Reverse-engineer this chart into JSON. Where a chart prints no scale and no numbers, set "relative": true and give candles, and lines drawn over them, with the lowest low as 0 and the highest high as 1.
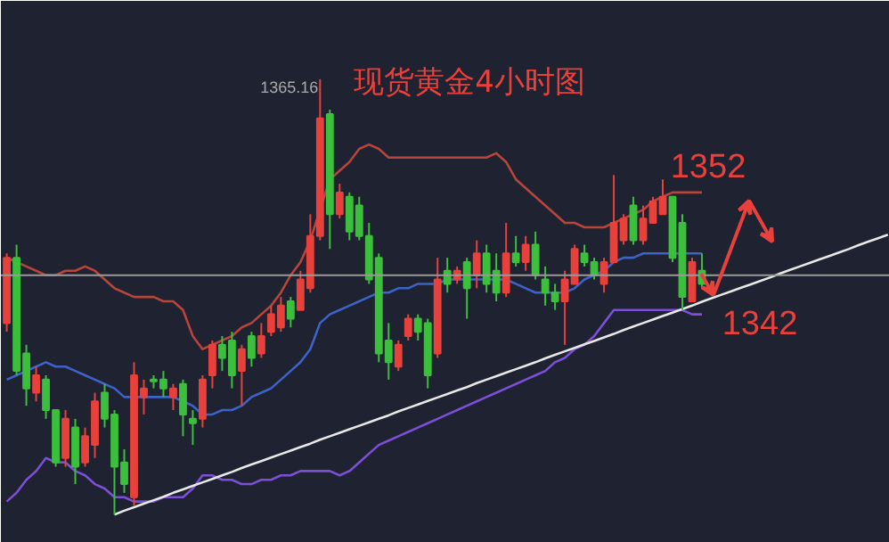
{
  "chart_data": {
    "type": "candlestick",
    "title": "现货黄金4小时图",
    "relative": true,
    "tick_labels": false,
    "annotations": [
      "1365.16",
      "1352",
      "1342"
    ],
    "categories": [
      null,
      null,
      null,
      null,
      null,
      null,
      null,
      null,
      null,
      null,
      null,
      null,
      null,
      null,
      null,
      null,
      null,
      null,
      null,
      null,
      null,
      null,
      null,
      null,
      null,
      null,
      null,
      null,
      null,
      null,
      null,
      null,
      null,
      null,
      null,
      null,
      null,
      null,
      null,
      null,
      null,
      null,
      null,
      null,
      null,
      null,
      null,
      null,
      null,
      null,
      null,
      null,
      null,
      null,
      null,
      null,
      null,
      null,
      null,
      null,
      null,
      null,
      null,
      null,
      null,
      null,
      null,
      null,
      null,
      null,
      null,
      null,
      null,
      null,
      null,
      null,
      null,
      null,
      null,
      null,
      null,
      null,
      null,
      null,
      null,
      null,
      null,
      null,
      null,
      null,
      null
    ],
    "ohlc": [
      [
        0.44,
        0.6,
        0.42,
        0.59
      ],
      [
        0.59,
        0.62,
        0.32,
        0.33
      ],
      [
        0.37,
        0.39,
        0.25,
        0.29
      ],
      [
        0.28,
        0.34,
        0.26,
        0.32
      ],
      [
        0.31,
        0.32,
        0.22,
        0.24
      ],
      [
        0.24,
        0.24,
        0.11,
        0.12
      ],
      [
        0.13,
        0.24,
        0.11,
        0.22
      ],
      [
        0.2,
        0.22,
        0.07,
        0.11
      ],
      [
        0.12,
        0.2,
        0.11,
        0.18
      ],
      [
        0.16,
        0.28,
        0.13,
        0.26
      ],
      [
        0.28,
        0.3,
        0.2,
        0.22
      ],
      [
        0.23,
        0.24,
        0,
        0.11
      ],
      [
        0.12,
        0.15,
        0.05,
        0.07
      ],
      [
        0.04,
        0.35,
        0.02,
        0.32
      ],
      [
        0.27,
        0.31,
        0.23,
        0.29
      ],
      [
        0.31,
        0.32,
        0.29,
        0.31
      ],
      [
        0.31,
        0.33,
        0.27,
        0.29
      ],
      [
        0.27,
        0.3,
        0.24,
        0.29
      ],
      [
        0.3,
        0.31,
        0.18,
        0.23
      ],
      [
        0.22,
        0.24,
        0.16,
        0.21
      ],
      [
        0.22,
        0.32,
        0.2,
        0.31
      ],
      [
        0.32,
        0.4,
        0.29,
        0.39
      ],
      [
        0.39,
        0.41,
        0.33,
        0.36
      ],
      [
        0.4,
        0.42,
        0.29,
        0.32
      ],
      [
        0.33,
        0.39,
        0.25,
        0.38
      ],
      [
        0.41,
        0.42,
        0.34,
        0.36
      ],
      [
        0.37,
        0.44,
        0.36,
        0.41
      ],
      [
        0.42,
        0.48,
        0.41,
        0.46
      ],
      [
        0.43,
        0.5,
        0.42,
        0.48
      ],
      [
        0.49,
        0.5,
        0.43,
        0.45
      ],
      [
        0.47,
        0.56,
        0.47,
        0.54
      ],
      [
        0.52,
        0.69,
        0.51,
        0.64
      ],
      [
        0.64,
        1,
        0.63,
        0.91
      ],
      [
        0.92,
        0.93,
        0.61,
        0.69
      ],
      [
        0.69,
        0.76,
        0.68,
        0.74
      ],
      [
        0.73,
        0.74,
        0.63,
        0.65
      ],
      [
        0.71,
        0.73,
        0.63,
        0.64
      ],
      [
        0.64,
        0.67,
        0.53,
        0.54
      ],
      [
        0.59,
        0.6,
        0.35,
        0.37
      ],
      [
        0.4,
        0.44,
        0.31,
        0.35
      ],
      [
        0.34,
        0.4,
        0.33,
        0.39
      ],
      [
        0.41,
        0.46,
        0.4,
        0.45
      ],
      [
        0.45,
        0.46,
        0.4,
        0.42
      ],
      [
        0.44,
        0.45,
        0.29,
        0.32
      ],
      [
        0.37,
        0.59,
        0.36,
        0.54
      ],
      [
        0.56,
        0.59,
        0.51,
        0.53
      ],
      [
        0.54,
        0.57,
        0.53,
        0.56
      ],
      [
        0.58,
        0.59,
        0.45,
        0.52
      ],
      [
        0.55,
        0.63,
        0.52,
        0.6
      ],
      [
        0.6,
        0.62,
        0.51,
        0.53
      ],
      [
        0.56,
        0.6,
        0.49,
        0.51
      ],
      [
        0.51,
        0.67,
        0.5,
        0.6
      ],
      [
        0.6,
        0.64,
        0.57,
        0.58
      ],
      [
        0.58,
        0.64,
        0.56,
        0.62
      ],
      [
        0.62,
        0.65,
        0.54,
        0.55
      ],
      [
        0.54,
        0.57,
        0.48,
        0.51
      ],
      [
        0.51,
        0.53,
        0.47,
        0.49
      ],
      [
        0.49,
        0.56,
        0.39,
        0.54
      ],
      [
        0.53,
        0.62,
        0.53,
        0.61
      ],
      [
        0.6,
        0.62,
        0.57,
        0.58
      ],
      [
        0.58,
        0.59,
        0.54,
        0.55
      ],
      [
        0.53,
        0.59,
        0.51,
        0.58
      ],
      [
        0.58,
        0.78,
        0.58,
        0.67
      ],
      [
        0.63,
        0.69,
        0.62,
        0.68
      ],
      [
        0.71,
        0.73,
        0.62,
        0.63
      ],
      [
        0.63,
        0.71,
        0.62,
        0.68
      ],
      [
        0.67,
        0.73,
        0.67,
        0.72
      ],
      [
        0.69,
        0.77,
        0.69,
        0.73
      ],
      [
        0.73,
        0.73,
        0.58,
        0.59
      ],
      [
        0.67,
        0.69,
        0.47,
        0.5
      ],
      [
        0.49,
        0.59,
        0.49,
        0.58
      ],
      [
        0.56,
        0.6,
        0.52,
        0.53
      ],
      null,
      null,
      null,
      null,
      null,
      null,
      null,
      null,
      null,
      null,
      null,
      null,
      null,
      null,
      null,
      null,
      null,
      null,
      null
    ],
    "colors": [
      "#e8413b",
      "#3cbf3c",
      "#3cbf3c",
      "#e8413b",
      "#3cbf3c",
      "#3cbf3c",
      "#e8413b",
      "#3cbf3c",
      "#e8413b",
      "#e8413b",
      "#3cbf3c",
      "#3cbf3c",
      "#3cbf3c",
      "#e8413b",
      "#e8413b",
      "#3cbf3c",
      "#3cbf3c",
      "#e8413b",
      "#3cbf3c",
      "#3cbf3c",
      "#e8413b",
      "#e8413b",
      "#3cbf3c",
      "#3cbf3c",
      "#e8413b",
      "#3cbf3c",
      "#e8413b",
      "#e8413b",
      "#e8413b",
      "#3cbf3c",
      "#e8413b",
      "#e8413b",
      "#e8413b",
      "#3cbf3c",
      "#e8413b",
      "#3cbf3c",
      "#3cbf3c",
      "#3cbf3c",
      "#3cbf3c",
      "#3cbf3c",
      "#e8413b",
      "#e8413b",
      "#3cbf3c",
      "#3cbf3c",
      "#e8413b",
      "#3cbf3c",
      "#e8413b",
      "#3cbf3c",
      "#e8413b",
      "#3cbf3c",
      "#3cbf3c",
      "#e8413b",
      "#3cbf3c",
      "#e8413b",
      "#3cbf3c",
      "#3cbf3c",
      "#3cbf3c",
      "#e8413b",
      "#e8413b",
      "#3cbf3c",
      "#3cbf3c",
      "#e8413b",
      "#e8413b",
      "#e8413b",
      "#3cbf3c",
      "#e8413b",
      "#e8413b",
      "#e8413b",
      "#3cbf3c",
      "#3cbf3c",
      "#e8413b",
      "#3cbf3c",
      null,
      null,
      null,
      null,
      null,
      null,
      null,
      null,
      null,
      null,
      null,
      null,
      null,
      null,
      null,
      null,
      null,
      null,
      null
    ],
    "series": [
      {
        "type": "line",
        "color": "#b8453c",
        "values": [
          0.59,
          0.58,
          0.57,
          0.56,
          0.55,
          0.55,
          0.56,
          0.56,
          0.57,
          0.56,
          0.54,
          0.52,
          0.51,
          0.5,
          0.5,
          0.5,
          0.49,
          0.49,
          0.47,
          0.41,
          0.38,
          0.39,
          0.4,
          0.41,
          0.43,
          0.44,
          0.46,
          0.48,
          0.51,
          0.55,
          0.58,
          0.63,
          0.7,
          0.77,
          0.79,
          0.81,
          0.84,
          0.85,
          0.84,
          0.82,
          0.82,
          0.82,
          0.82,
          0.82,
          0.82,
          0.82,
          0.82,
          0.82,
          0.82,
          0.82,
          0.83,
          0.81,
          0.77,
          0.75,
          0.73,
          0.71,
          0.69,
          0.67,
          0.67,
          0.66,
          0.66,
          0.66,
          0.67,
          0.68,
          0.69,
          0.7,
          0.72,
          0.73,
          0.74,
          0.74,
          0.74,
          0.74,
          null,
          null,
          null,
          null,
          null,
          null,
          null,
          null,
          null,
          null,
          null,
          null,
          null,
          null,
          null,
          null,
          null,
          null,
          null
        ]
      },
      {
        "type": "line",
        "color": "#3d63c8",
        "values": [
          0.31,
          0.32,
          0.33,
          0.34,
          0.35,
          0.34,
          0.34,
          0.33,
          0.32,
          0.31,
          0.3,
          0.29,
          0.27,
          0.27,
          0.27,
          0.27,
          0.27,
          0.27,
          0.26,
          0.25,
          0.23,
          0.23,
          0.24,
          0.24,
          0.25,
          0.27,
          0.28,
          0.29,
          0.31,
          0.33,
          0.35,
          0.38,
          0.44,
          0.46,
          0.47,
          0.48,
          0.49,
          0.5,
          0.51,
          0.51,
          0.52,
          0.52,
          0.53,
          0.53,
          0.53,
          0.54,
          0.54,
          0.54,
          0.54,
          0.54,
          0.54,
          0.54,
          0.53,
          0.52,
          0.51,
          0.51,
          0.51,
          0.51,
          0.52,
          0.54,
          0.55,
          0.56,
          0.58,
          0.59,
          0.59,
          0.6,
          0.6,
          0.6,
          0.6,
          0.6,
          0.6,
          0.6,
          null,
          null,
          null,
          null,
          null,
          null,
          null,
          null,
          null,
          null,
          null,
          null,
          null,
          null,
          null,
          null,
          null,
          null,
          null
        ]
      },
      {
        "type": "line",
        "color": "#7b4fd6",
        "values": [
          0.03,
          0.05,
          0.08,
          0.1,
          0.13,
          0.12,
          0.12,
          0.1,
          0.09,
          0.07,
          0.06,
          0.04,
          0.04,
          0.03,
          0.03,
          0.03,
          0.04,
          0.04,
          0.04,
          0.06,
          0.09,
          0.09,
          0.08,
          0.08,
          0.07,
          0.07,
          0.08,
          0.08,
          0.09,
          0.09,
          0.1,
          0.1,
          0.1,
          0.1,
          0.09,
          0.1,
          0.12,
          0.14,
          0.16,
          0.17,
          0.18,
          0.19,
          0.2,
          0.21,
          0.22,
          0.23,
          0.24,
          0.25,
          0.26,
          0.27,
          0.28,
          0.29,
          0.3,
          0.31,
          0.32,
          0.33,
          0.35,
          0.36,
          0.38,
          0.39,
          0.41,
          0.44,
          0.47,
          0.47,
          0.47,
          0.47,
          0.47,
          0.47,
          0.47,
          0.47,
          0.46,
          0.46,
          null,
          null,
          null,
          null,
          null,
          null,
          null,
          null,
          null,
          null,
          null,
          null,
          null,
          null,
          null,
          null,
          null,
          null,
          null
        ]
      },
      {
        "type": "line",
        "color": "#e8e8e8",
        "values": [
          null,
          null,
          null,
          null,
          null,
          null,
          null,
          null,
          null,
          null,
          null,
          0,
          0.009,
          0.017,
          0.025,
          0.033,
          0.041,
          0.05,
          0.058,
          0.066,
          0.074,
          0.082,
          0.09,
          0.098,
          0.107,
          0.115,
          0.123,
          0.131,
          0.139,
          0.147,
          0.155,
          0.163,
          0.172,
          0.18,
          0.188,
          0.196,
          0.204,
          0.212,
          0.22,
          0.228,
          0.237,
          0.245,
          0.253,
          0.261,
          0.269,
          0.277,
          0.285,
          0.293,
          0.302,
          0.31,
          0.318,
          0.326,
          0.334,
          0.342,
          0.35,
          0.359,
          0.367,
          0.375,
          0.383,
          0.391,
          0.399,
          0.407,
          0.415,
          0.424,
          0.432,
          0.44,
          0.448,
          0.456,
          0.464,
          0.472,
          0.48,
          0.489,
          0.497,
          0.505,
          0.513,
          0.521,
          0.529,
          0.537,
          0.545,
          0.554,
          0.562,
          0.57,
          0.578,
          0.586,
          0.594,
          0.602,
          0.61,
          0.619,
          0.627,
          0.635,
          0.643
        ]
      }
    ],
    "ref_lines": [
      {
        "axis": "y",
        "value": 0.55,
        "color": "#9a9a9a"
      }
    ]
  }
}
